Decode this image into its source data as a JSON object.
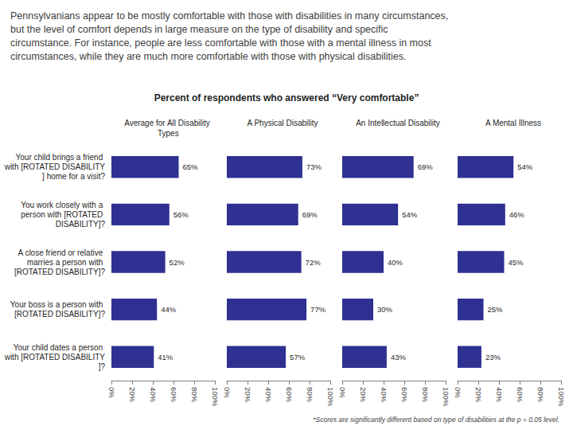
{
  "heading": "Pennsylvanians appear to be mostly comfortable with those with disabilities in many circumstances, but the level of comfort depends in large measure on the type of disability and specific circumstance. For instance, people are less comfortable with those with a mental illness in most circumstances, while they are much more comfortable with those with physical disabilities.",
  "subtitle": "Percent of respondents who answered “Very comfortable”",
  "footnote": "*Scores are significantly different based on type of disabilities at the p = 0.05 level.",
  "chart_data": [
    {
      "type": "bar",
      "title": "Average for All Disability Types",
      "categories": [
        "Your child brings a friend with [ROTATED DISABILITY] home for a visit?",
        "You work closely with a person with [ROTATED DISABILITY]?",
        "A close friend or relative marries a person with [ROTATED DISABILITY]?",
        "Your boss is a person with [ROTATED DISABILITY]?",
        "Your child dates a person with [ROTATED DISABILITY]?"
      ],
      "values": [
        65,
        56,
        52,
        44,
        41
      ],
      "value_labels": [
        "65%",
        "56%",
        "52%",
        "44%",
        "41%"
      ],
      "color": "#2e3092",
      "orientation": "horizontal",
      "data_labels": true,
      "grid": false,
      "tick_labels": true,
      "xlim": [
        0,
        100
      ],
      "xticks": [
        {
          "value": 0,
          "label": "0%"
        },
        {
          "value": 20,
          "label": "20%"
        },
        {
          "value": 40,
          "label": "40%"
        },
        {
          "value": 60,
          "label": "60%"
        },
        {
          "value": 80,
          "label": "80%"
        },
        {
          "value": 100,
          "label": "100%"
        }
      ]
    },
    {
      "type": "bar",
      "title": "A Physical Disability",
      "categories": [
        "Your child brings a friend with [ROTATED DISABILITY] home for a visit?",
        "You work closely with a person with [ROTATED DISABILITY]?",
        "A close friend or relative marries a person with [ROTATED DISABILITY]?",
        "Your boss is a person with [ROTATED DISABILITY]?",
        "Your child dates a person with [ROTATED DISABILITY]?"
      ],
      "values": [
        73,
        69,
        72,
        77,
        57
      ],
      "value_labels": [
        "73%",
        "69%",
        "72%",
        "77%",
        "57%"
      ],
      "color": "#2e3092",
      "orientation": "horizontal",
      "data_labels": true,
      "grid": false,
      "tick_labels": "x",
      "xlim": [
        0,
        100
      ],
      "xticks": [
        {
          "value": 0,
          "label": "0%"
        },
        {
          "value": 20,
          "label": "20%"
        },
        {
          "value": 40,
          "label": "40%"
        },
        {
          "value": 60,
          "label": "60%"
        },
        {
          "value": 80,
          "label": "80%"
        },
        {
          "value": 100,
          "label": "100%"
        }
      ]
    },
    {
      "type": "bar",
      "title": "An Intellectual Disability",
      "categories": [
        "Your child brings a friend with [ROTATED DISABILITY] home for a visit?",
        "You work closely with a person with [ROTATED DISABILITY]?",
        "A close friend or relative marries a person with [ROTATED DISABILITY]?",
        "Your boss is a person with [ROTATED DISABILITY]?",
        "Your child dates a person with [ROTATED DISABILITY]?"
      ],
      "values": [
        69,
        54,
        40,
        30,
        43
      ],
      "value_labels": [
        "69%",
        "54%",
        "40%",
        "30%",
        "43%"
      ],
      "color": "#2e3092",
      "orientation": "horizontal",
      "data_labels": true,
      "grid": false,
      "tick_labels": "x",
      "xlim": [
        0,
        100
      ],
      "xticks": [
        {
          "value": 0,
          "label": "0%"
        },
        {
          "value": 20,
          "label": "20%"
        },
        {
          "value": 40,
          "label": "40%"
        },
        {
          "value": 60,
          "label": "60%"
        },
        {
          "value": 80,
          "label": "80%"
        },
        {
          "value": 100,
          "label": "100%"
        }
      ]
    },
    {
      "type": "bar",
      "title": "A Mental Illness",
      "categories": [
        "Your child brings a friend with [ROTATED DISABILITY] home for a visit?",
        "You work closely with a person with [ROTATED DISABILITY]?",
        "A close friend or relative marries a person with [ROTATED DISABILITY]?",
        "Your boss is a person with [ROTATED DISABILITY]?",
        "Your child dates a person with [ROTATED DISABILITY]?"
      ],
      "values": [
        54,
        46,
        45,
        25,
        23
      ],
      "value_labels": [
        "54%",
        "46%",
        "45%",
        "25%",
        "23%"
      ],
      "color": "#2e3092",
      "orientation": "horizontal",
      "data_labels": true,
      "grid": false,
      "tick_labels": "x",
      "xlim": [
        0,
        100
      ],
      "xticks": [
        {
          "value": 0,
          "label": "0%"
        },
        {
          "value": 20,
          "label": "20%"
        },
        {
          "value": 40,
          "label": "40%"
        },
        {
          "value": 60,
          "label": "60%"
        },
        {
          "value": 80,
          "label": "80%"
        },
        {
          "value": 100,
          "label": "100%"
        }
      ]
    }
  ]
}
